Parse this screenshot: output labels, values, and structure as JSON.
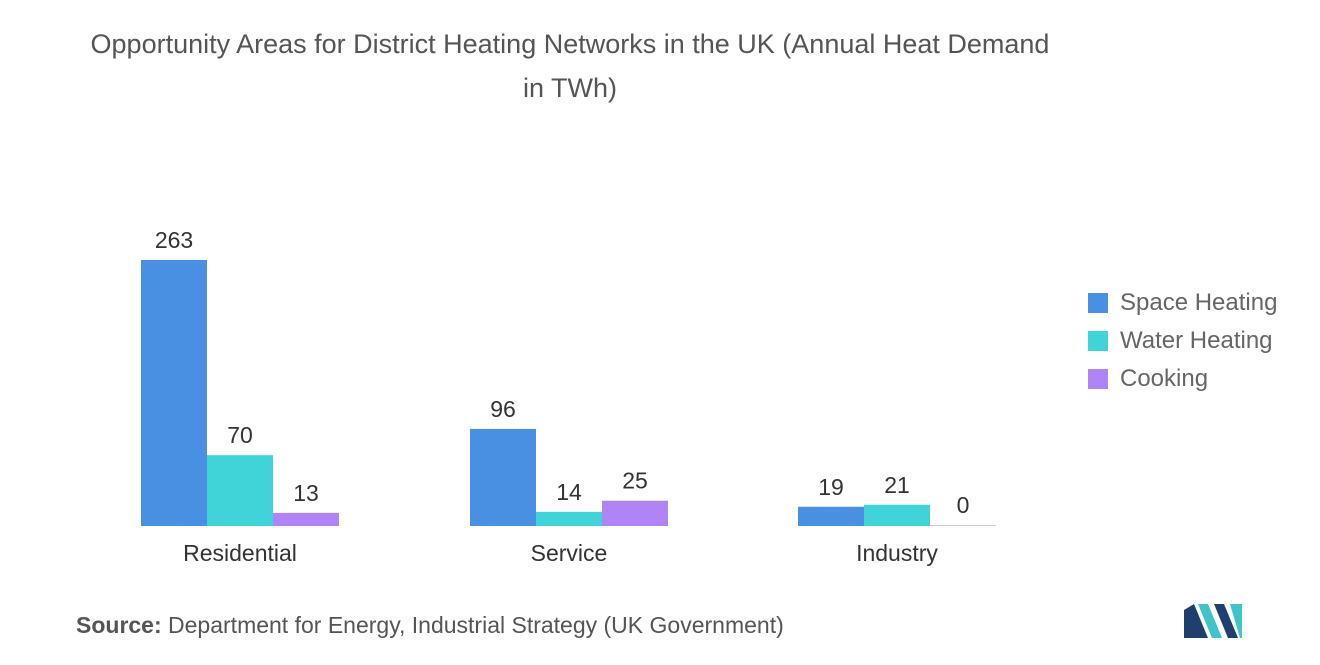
{
  "title": "Opportunity Areas for District Heating Networks in the UK (Annual Heat Demand in TWh)",
  "source_label": "Source:",
  "source_text": "Department for Energy, Industrial Strategy (UK Government)",
  "logo_icon": "mordor-intelligence-logo-icon",
  "chart_data": {
    "type": "bar",
    "title": "Opportunity Areas for District Heating Networks in the UK (Annual Heat Demand in TWh)",
    "categories": [
      "Residential",
      "Service",
      "Industry"
    ],
    "series": [
      {
        "name": "Space Heating",
        "color": "#4a90e2",
        "values": [
          263,
          96,
          19
        ]
      },
      {
        "name": "Water Heating",
        "color": "#40d4d9",
        "values": [
          70,
          14,
          21
        ]
      },
      {
        "name": "Cooking",
        "color": "#b184f5",
        "values": [
          13,
          25,
          0
        ]
      }
    ],
    "ylim": [
      0,
      263
    ],
    "grid": false,
    "legend": "right"
  }
}
